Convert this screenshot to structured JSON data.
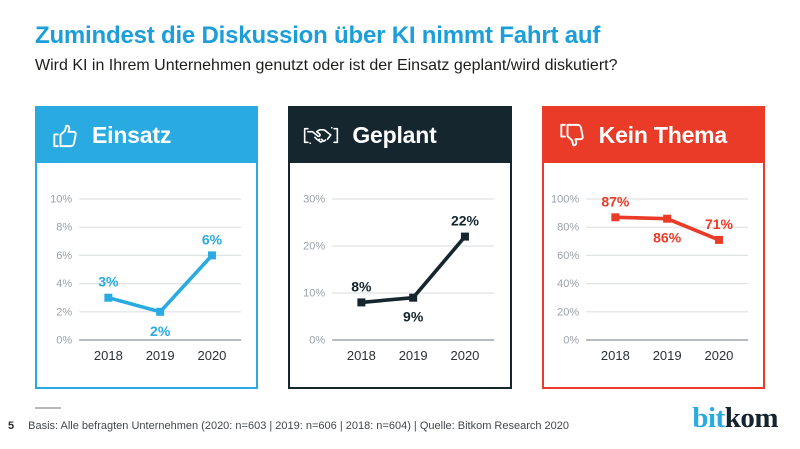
{
  "page": {
    "title": "Zumindest die Diskussion über KI nimmt Fahrt auf",
    "title_color": "#1b9ed9",
    "subtitle": "Wird KI in Ihrem Unternehmen genutzt oder ist der Einsatz geplant/wird diskutiert?",
    "page_number": "5",
    "footnote": "Basis: Alle befragten Unternehmen (2020: n=603 | 2019: n=606 | 2018: n=604) | Quelle: Bitkom Research 2020",
    "logo": {
      "part1": "bit",
      "part2": "kom",
      "part1_color": "#29abe2",
      "part2_color": "#15242c"
    }
  },
  "chart_data": [
    {
      "type": "line",
      "title": "Einsatz",
      "icon": "thumbs-up-icon",
      "accent": "#29abe2",
      "categories": [
        "2018",
        "2019",
        "2020"
      ],
      "values": [
        3,
        2,
        6
      ],
      "value_labels": [
        "3%",
        "2%",
        "6%"
      ],
      "label_positions": [
        "above",
        "below",
        "above"
      ],
      "yticks": [
        0,
        2,
        4,
        6,
        8,
        10
      ],
      "ytick_labels": [
        "0%",
        "2%",
        "4%",
        "6%",
        "8%",
        "10%"
      ],
      "ylim": [
        0,
        10
      ],
      "grid": true,
      "legend": "none",
      "xlabel": "",
      "ylabel": ""
    },
    {
      "type": "line",
      "title": "Geplant",
      "icon": "handshake-icon",
      "accent": "#15262e",
      "categories": [
        "2018",
        "2019",
        "2020"
      ],
      "values": [
        8,
        9,
        22
      ],
      "value_labels": [
        "8%",
        "9%",
        "22%"
      ],
      "label_positions": [
        "above",
        "below",
        "above"
      ],
      "yticks": [
        0,
        10,
        20,
        30
      ],
      "ytick_labels": [
        "0%",
        "10%",
        "20%",
        "30%"
      ],
      "ylim": [
        0,
        30
      ],
      "grid": true,
      "legend": "none",
      "xlabel": "",
      "ylabel": ""
    },
    {
      "type": "line",
      "title": "Kein Thema",
      "icon": "thumbs-down-icon",
      "accent": "#ea3b28",
      "categories": [
        "2018",
        "2019",
        "2020"
      ],
      "values": [
        87,
        86,
        71
      ],
      "value_labels": [
        "87%",
        "86%",
        "71%"
      ],
      "label_positions": [
        "above",
        "below",
        "above"
      ],
      "yticks": [
        0,
        20,
        40,
        60,
        80,
        100
      ],
      "ytick_labels": [
        "0%",
        "20%",
        "40%",
        "60%",
        "80%",
        "100%"
      ],
      "ylim": [
        0,
        100
      ],
      "grid": true,
      "legend": "none",
      "xlabel": "",
      "ylabel": ""
    }
  ]
}
